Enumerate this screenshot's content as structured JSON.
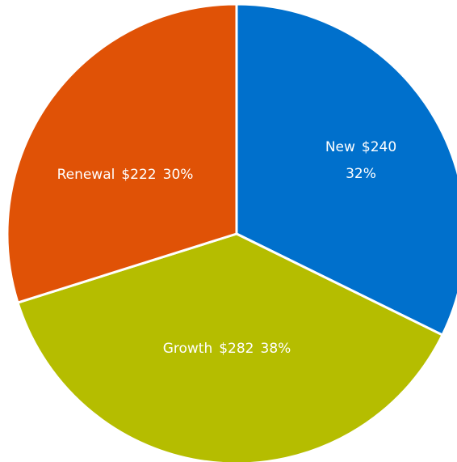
{
  "chart_data": {
    "type": "pie",
    "categories": [
      "New",
      "Growth",
      "Renewal"
    ],
    "values": [
      240,
      282,
      222
    ],
    "value_labels": [
      "$240",
      "$282",
      "$222"
    ],
    "percent_labels": [
      "32%",
      "38%",
      "30%"
    ],
    "colors": [
      "#0070cc",
      "#b5bd00",
      "#e05206"
    ],
    "start_angle": 0,
    "direction": "clockwise"
  }
}
